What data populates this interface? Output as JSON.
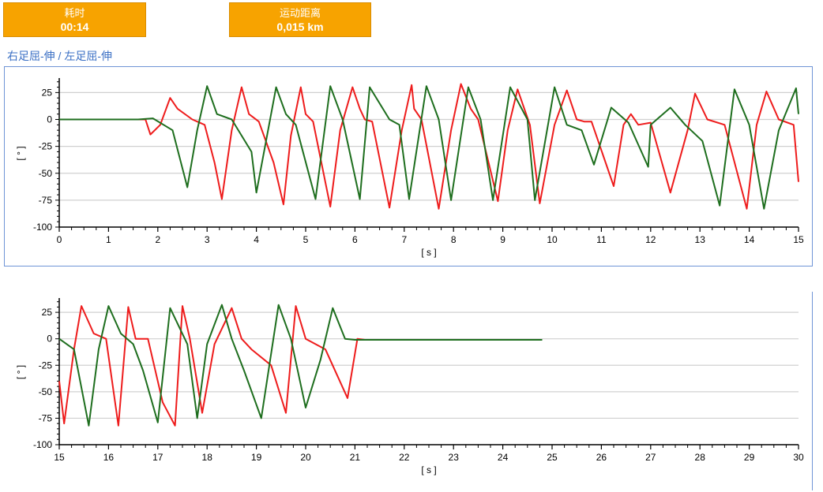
{
  "stats": {
    "time": {
      "label": "耗时",
      "value": "00:14"
    },
    "distance": {
      "label": "运动距离",
      "value": "0,015 km"
    }
  },
  "section_title": "右足屈-伸 / 左足屈-伸",
  "colors": {
    "stat_box": "#f7a300",
    "title": "#3a6fc4",
    "frame": "#6f94d6",
    "grid": "#d0d0d0",
    "series_red": "#ee1c1c",
    "series_green": "#1e6e1e"
  },
  "chart_data": [
    {
      "type": "line",
      "xlabel": "[ s ]",
      "ylabel": "[ ° ]",
      "xlim": [
        0,
        15
      ],
      "ylim": [
        -100,
        37
      ],
      "xticks": [
        0,
        1,
        2,
        3,
        4,
        5,
        6,
        7,
        8,
        9,
        10,
        11,
        12,
        13,
        14,
        15
      ],
      "yticks": [
        25,
        0,
        -25,
        -50,
        -75,
        -100
      ],
      "grid": "horizontal",
      "series": [
        {
          "color": "#ee1c1c",
          "x": [
            0,
            1.75,
            1.85,
            2.05,
            2.25,
            2.4,
            2.7,
            2.95,
            3.15,
            3.3,
            3.5,
            3.7,
            3.85,
            4.05,
            4.35,
            4.55,
            4.7,
            4.9,
            5.0,
            5.15,
            5.5,
            5.7,
            5.95,
            6.1,
            6.2,
            6.35,
            6.7,
            6.95,
            7.15,
            7.2,
            7.35,
            7.7,
            7.95,
            8.15,
            8.35,
            8.5,
            8.9,
            9.1,
            9.3,
            9.55,
            9.75,
            10.05,
            10.3,
            10.5,
            10.65,
            10.8,
            11.25,
            11.45,
            11.6,
            11.75,
            12.0,
            12.4,
            12.75,
            12.9,
            13.15,
            13.5,
            13.95,
            14.15,
            14.35,
            14.6,
            14.9,
            15.0
          ],
          "y": [
            0,
            0,
            -14,
            -5,
            20,
            10,
            0,
            -5,
            -40,
            -74,
            -10,
            30,
            5,
            -2,
            -40,
            -79,
            -15,
            30,
            5,
            -2,
            -81,
            -10,
            30,
            10,
            0,
            -2,
            -82,
            -10,
            32,
            10,
            0,
            -83,
            -10,
            33,
            10,
            0,
            -76,
            -10,
            28,
            -5,
            -78,
            -5,
            27,
            0,
            -2,
            -2,
            -62,
            -5,
            5,
            -5,
            -3,
            -68,
            -10,
            24,
            0,
            -5,
            -83,
            -5,
            26,
            0,
            -5,
            -58
          ]
        },
        {
          "color": "#1e6e1e",
          "x": [
            0,
            1.6,
            1.9,
            2.3,
            2.6,
            2.8,
            3.0,
            3.2,
            3.5,
            3.9,
            4.0,
            4.4,
            4.6,
            4.8,
            5.2,
            5.5,
            5.75,
            6.1,
            6.3,
            6.7,
            6.9,
            7.1,
            7.45,
            7.7,
            7.95,
            8.3,
            8.55,
            8.8,
            9.15,
            9.5,
            9.65,
            10.05,
            10.3,
            10.6,
            10.85,
            11.2,
            11.55,
            11.95,
            12.0,
            12.4,
            12.7,
            13.05,
            13.4,
            13.7,
            14.0,
            14.3,
            14.6,
            14.95,
            15.0
          ],
          "y": [
            0,
            0,
            1,
            -10,
            -63,
            -10,
            31,
            5,
            0,
            -30,
            -68,
            30,
            5,
            -5,
            -74,
            31,
            0,
            -74,
            30,
            0,
            -5,
            -74,
            31,
            0,
            -75,
            30,
            0,
            -75,
            30,
            0,
            -75,
            30,
            -5,
            -10,
            -42,
            11,
            -3,
            -44,
            -5,
            11,
            -5,
            -20,
            -80,
            28,
            -5,
            -83,
            -10,
            29,
            5
          ]
        }
      ]
    },
    {
      "type": "line",
      "xlabel": "[ s ]",
      "ylabel": "[ ° ]",
      "xlim": [
        15,
        30
      ],
      "ylim": [
        -100,
        37
      ],
      "xticks": [
        15,
        16,
        17,
        18,
        19,
        20,
        21,
        22,
        23,
        24,
        25,
        26,
        27,
        28,
        29,
        30
      ],
      "yticks": [
        25,
        0,
        -25,
        -50,
        -75,
        -100
      ],
      "grid": "horizontal",
      "series": [
        {
          "color": "#ee1c1c",
          "x": [
            15.0,
            15.1,
            15.3,
            15.45,
            15.7,
            15.95,
            16.2,
            16.4,
            16.55,
            16.8,
            17.1,
            17.35,
            17.5,
            17.65,
            17.9,
            18.15,
            18.5,
            18.7,
            18.9,
            19.3,
            19.6,
            19.8,
            20.0,
            20.4,
            20.85,
            21.05,
            21.2,
            24.8
          ],
          "y": [
            -40,
            -80,
            -10,
            31,
            5,
            0,
            -82,
            30,
            0,
            0,
            -60,
            -82,
            31,
            0,
            -70,
            -5,
            29,
            0,
            -10,
            -25,
            -70,
            31,
            0,
            -10,
            -56,
            0,
            -1,
            -1
          ]
        },
        {
          "color": "#1e6e1e",
          "x": [
            15.0,
            15.3,
            15.6,
            15.8,
            16.0,
            16.25,
            16.5,
            16.7,
            17.0,
            17.25,
            17.6,
            17.8,
            18.0,
            18.3,
            18.5,
            18.75,
            19.1,
            19.45,
            19.7,
            20.0,
            20.3,
            20.55,
            20.8,
            21.0,
            24.8
          ],
          "y": [
            0,
            -10,
            -82,
            -10,
            31,
            5,
            -5,
            -30,
            -79,
            29,
            -5,
            -75,
            -5,
            32,
            0,
            -30,
            -75,
            32,
            0,
            -65,
            -20,
            29,
            0,
            -1,
            -1
          ]
        }
      ]
    }
  ]
}
